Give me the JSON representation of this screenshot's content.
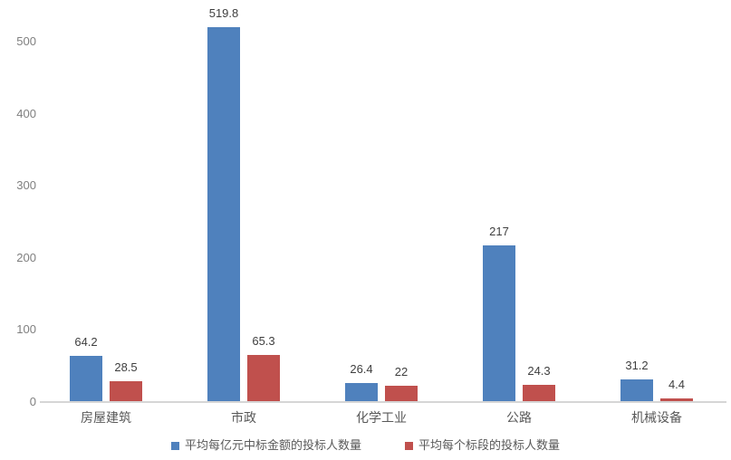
{
  "colors": {
    "series1": "#4f81bd",
    "series2": "#c0504d",
    "axis_line": "#d6d6d6",
    "data_label_text": "#3f3f3f",
    "tick_text": "#7f7f7f",
    "category_text": "#595959",
    "background": "#ffffff"
  },
  "chart_data": {
    "type": "bar",
    "title": "",
    "xlabel": "",
    "ylabel": "",
    "categories": [
      "房屋建筑",
      "市政",
      "化学工业",
      "公路",
      "机械设备"
    ],
    "series": [
      {
        "name": "平均每亿元中标金额的投标人数量",
        "color": "#4f81bd",
        "values": [
          64.2,
          519.8,
          26.4,
          217,
          31.2
        ],
        "labels": [
          "64.2",
          "519.8",
          "26.4",
          "217",
          "31.2"
        ]
      },
      {
        "name": "平均每个标段的投标人数量",
        "color": "#c0504d",
        "values": [
          28.5,
          65.3,
          22,
          24.3,
          4.4
        ],
        "labels": [
          "28.5",
          "65.3",
          "22",
          "24.3",
          "4.4"
        ]
      }
    ],
    "yticks": [
      0,
      100,
      200,
      300,
      400,
      500
    ],
    "ylim": [
      0,
      560
    ],
    "grid": false,
    "legend_position": "bottom"
  }
}
